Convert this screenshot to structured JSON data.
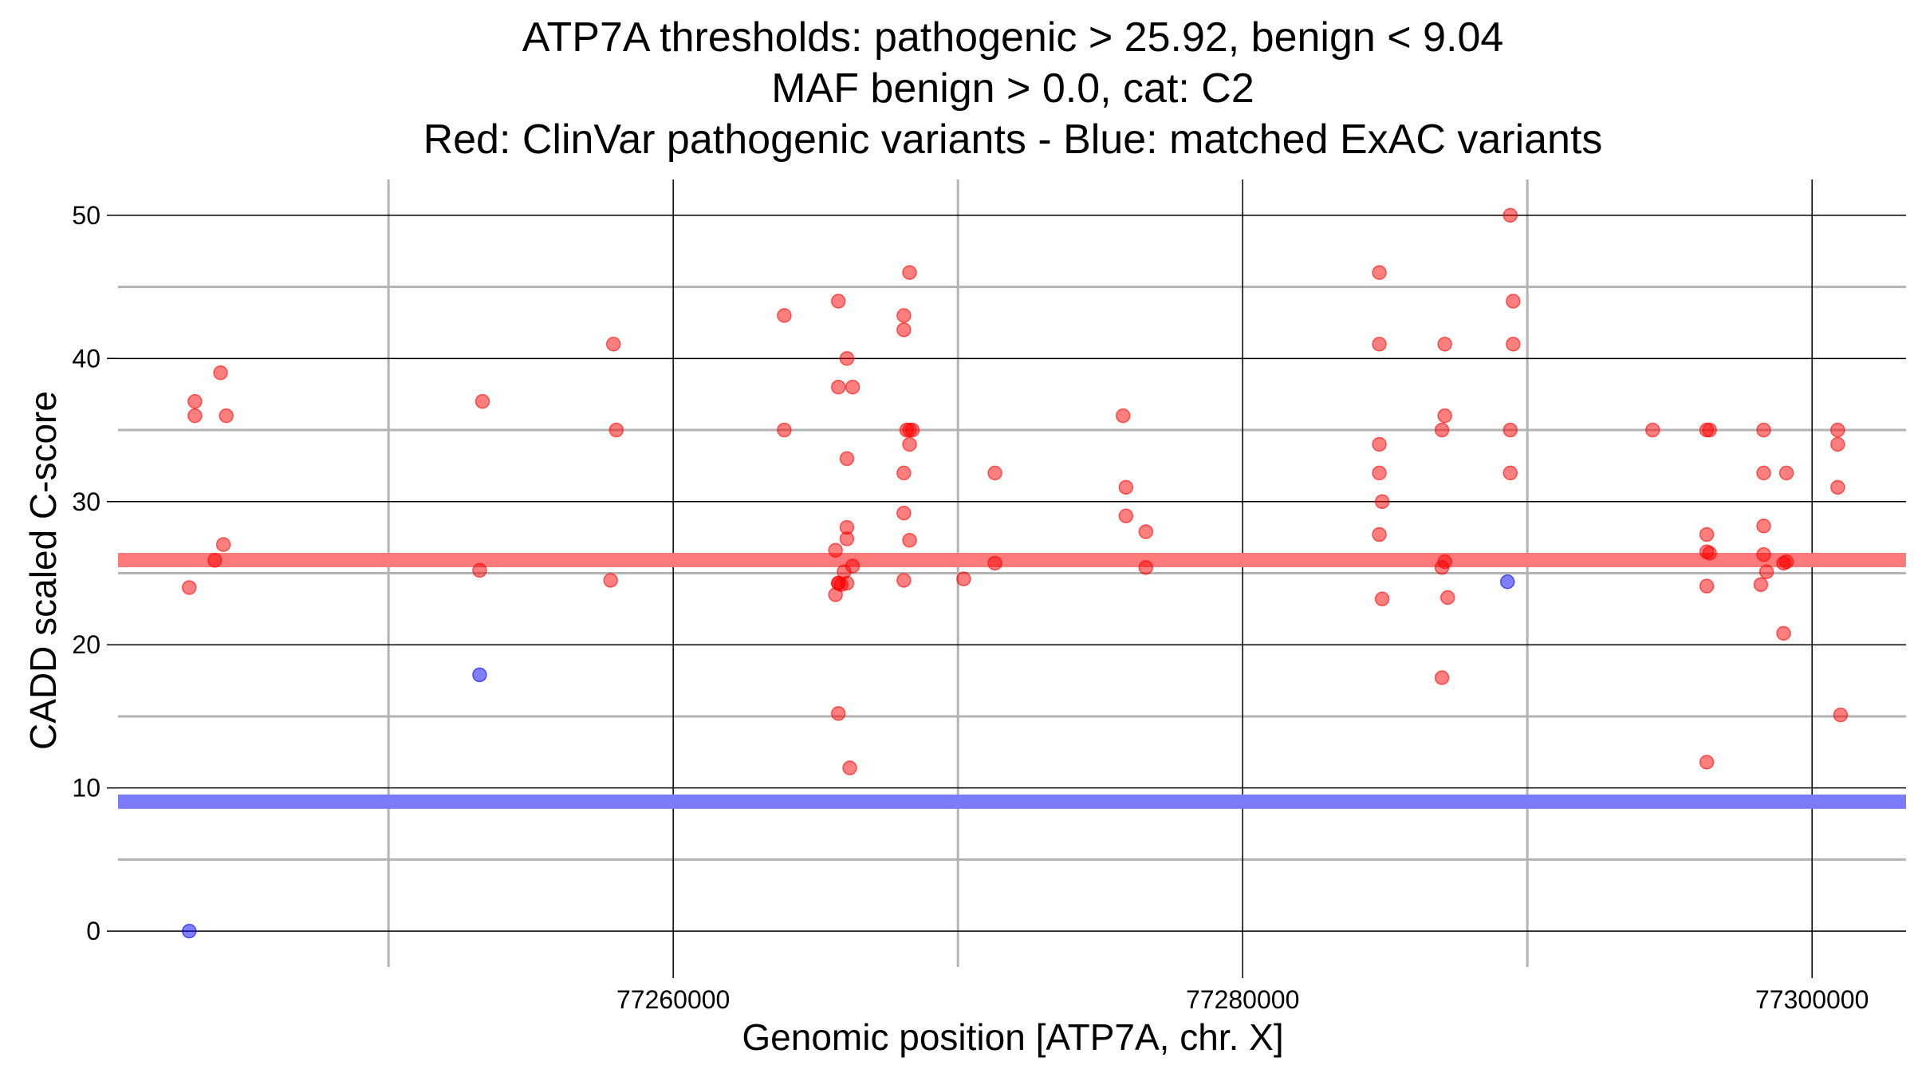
{
  "chart_data": {
    "type": "scatter",
    "title_lines": [
      "ATP7A thresholds: pathogenic > 25.92, benign < 9.04",
      "MAF benign > 0.0, cat: C2",
      "Red: ClinVar pathogenic variants - Blue: matched ExAC variants"
    ],
    "xlabel": "Genomic position [ATP7A, chr. X]",
    "ylabel": "CADD scaled C-score",
    "xlim": [
      77240500,
      77303300
    ],
    "ylim": [
      -2.5,
      52.5
    ],
    "x_major_ticks": [
      77260000,
      77280000,
      77300000
    ],
    "x_minor_ticks": [
      77250000,
      77270000,
      77290000
    ],
    "x_tick_labels": [
      "77260000",
      "77280000",
      "77300000"
    ],
    "y_major_ticks": [
      0,
      10,
      20,
      30,
      40,
      50
    ],
    "y_minor_ticks": [
      5,
      15,
      25,
      35,
      45
    ],
    "y_tick_labels": [
      "0",
      "10",
      "20",
      "30",
      "40",
      "50"
    ],
    "colors": {
      "pathogenic": "#ff0000",
      "benign": "#0000ff",
      "pathogenic_threshold_line": "#ff7a7a",
      "benign_threshold_line": "#7b7bf7",
      "major_grid": "#000000",
      "minor_grid": "#b3b3b3"
    },
    "thresholds": {
      "pathogenic": 25.92,
      "benign": 9.04
    },
    "series": [
      {
        "name": "ClinVar pathogenic variants",
        "color_key": "pathogenic",
        "points": [
          [
            77243200,
            37
          ],
          [
            77243200,
            36
          ],
          [
            77243000,
            24
          ],
          [
            77243900,
            25.9
          ],
          [
            77244200,
            27
          ],
          [
            77244100,
            39
          ],
          [
            77244300,
            36
          ],
          [
            77253300,
            37
          ],
          [
            77253200,
            25.2
          ],
          [
            77257900,
            41
          ],
          [
            77258000,
            35
          ],
          [
            77257800,
            24.5
          ],
          [
            77263900,
            43
          ],
          [
            77263900,
            35
          ],
          [
            77265800,
            44
          ],
          [
            77266100,
            40
          ],
          [
            77265800,
            38
          ],
          [
            77266300,
            38
          ],
          [
            77266100,
            33
          ],
          [
            77266100,
            28.2
          ],
          [
            77266100,
            27.4
          ],
          [
            77265700,
            26.6
          ],
          [
            77266000,
            25.1
          ],
          [
            77266300,
            25.5
          ],
          [
            77265800,
            24.3
          ],
          [
            77265900,
            24.2
          ],
          [
            77265800,
            24.3
          ],
          [
            77266100,
            24.3
          ],
          [
            77265700,
            23.5
          ],
          [
            77265800,
            15.2
          ],
          [
            77266200,
            11.4
          ],
          [
            77268300,
            46
          ],
          [
            77268100,
            43
          ],
          [
            77268100,
            42
          ],
          [
            77268200,
            35
          ],
          [
            77268300,
            35
          ],
          [
            77268400,
            35
          ],
          [
            77268300,
            34
          ],
          [
            77268100,
            32
          ],
          [
            77268100,
            29.2
          ],
          [
            77268300,
            27.3
          ],
          [
            77268100,
            24.5
          ],
          [
            77270200,
            24.6
          ],
          [
            77271300,
            25.7
          ],
          [
            77271300,
            32
          ],
          [
            77275800,
            36
          ],
          [
            77275900,
            31
          ],
          [
            77275900,
            29
          ],
          [
            77276600,
            27.9
          ],
          [
            77276600,
            25.4
          ],
          [
            77284800,
            46
          ],
          [
            77284800,
            41
          ],
          [
            77284800,
            34
          ],
          [
            77284800,
            32
          ],
          [
            77284900,
            30
          ],
          [
            77284800,
            27.7
          ],
          [
            77284900,
            23.2
          ],
          [
            77287100,
            41
          ],
          [
            77287100,
            36
          ],
          [
            77287000,
            35
          ],
          [
            77287100,
            25.8
          ],
          [
            77287000,
            25.4
          ],
          [
            77287200,
            23.3
          ],
          [
            77287000,
            17.7
          ],
          [
            77289400,
            50
          ],
          [
            77289500,
            44
          ],
          [
            77289500,
            41
          ],
          [
            77289400,
            35
          ],
          [
            77289400,
            32
          ],
          [
            77294400,
            35
          ],
          [
            77296300,
            35
          ],
          [
            77296400,
            35
          ],
          [
            77296300,
            27.7
          ],
          [
            77296300,
            26.5
          ],
          [
            77296400,
            26.4
          ],
          [
            77296300,
            24.1
          ],
          [
            77296300,
            11.8
          ],
          [
            77298300,
            35
          ],
          [
            77298300,
            32
          ],
          [
            77298300,
            28.3
          ],
          [
            77298300,
            26.3
          ],
          [
            77298400,
            25.1
          ],
          [
            77298200,
            24.2
          ],
          [
            77299100,
            32
          ],
          [
            77299000,
            25.7
          ],
          [
            77299100,
            25.8
          ],
          [
            77299000,
            20.8
          ],
          [
            77300900,
            35
          ],
          [
            77300900,
            34
          ],
          [
            77300900,
            31
          ],
          [
            77301000,
            15.1
          ]
        ]
      },
      {
        "name": "matched ExAC variants",
        "color_key": "benign",
        "points": [
          [
            77243000,
            0
          ],
          [
            77253200,
            17.9
          ],
          [
            77289300,
            24.4
          ]
        ]
      }
    ]
  }
}
